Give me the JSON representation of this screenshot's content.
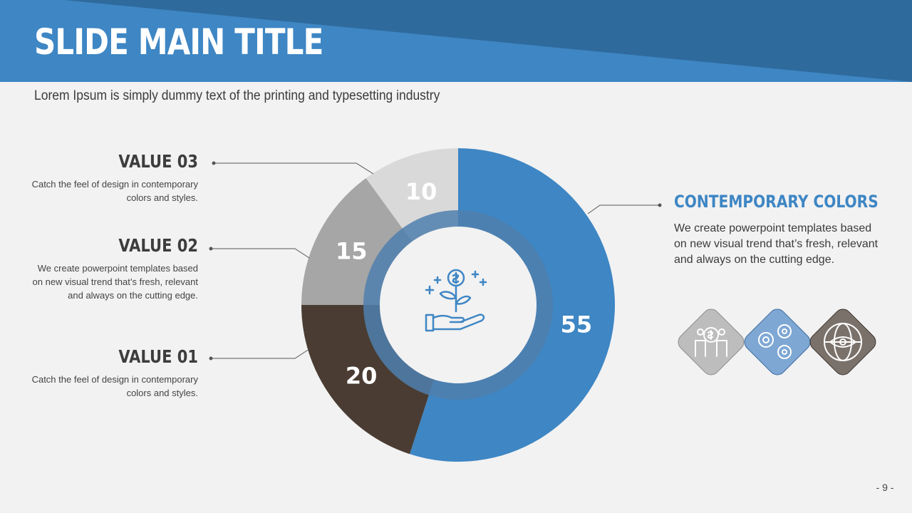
{
  "slide": {
    "title": "SLIDE MAIN TITLE",
    "subtitle": "Lorem Ipsum is simply dummy text of the printing and typesetting industry",
    "page_number": "- 9 -"
  },
  "values": [
    {
      "title": "VALUE 03",
      "description": "Catch the feel of design in contemporary colors and styles."
    },
    {
      "title": "VALUE 02",
      "description": "We create powerpoint templates based on new visual trend that’s fresh, relevant and always on the cutting edge."
    },
    {
      "title": "VALUE 01",
      "description": "Catch the feel of design in contemporary colors and styles."
    }
  ],
  "right_panel": {
    "title": "CONTEMPORARY COLORS",
    "description": "We create powerpoint templates based on new visual trend that’s fresh, relevant and always on the cutting edge.",
    "icons": [
      {
        "name": "investor-people-icon",
        "color": "#bdbdbd"
      },
      {
        "name": "gears-team-icon",
        "color": "#7ea7d4"
      },
      {
        "name": "globe-eye-icon",
        "color": "#7a716b"
      }
    ]
  },
  "colors": {
    "header_dark": "#2f6a9c",
    "header_light": "#3e86c4",
    "accent": "#3e86c4",
    "dark_brown": "#4a3c32",
    "mid_gray": "#a6a6a6",
    "light_gray": "#d9d9d9"
  },
  "center_icon": "plant-in-hand-money-icon",
  "chart_data": {
    "type": "pie",
    "categories": [
      "55",
      "20",
      "15",
      "10"
    ],
    "values": [
      55,
      20,
      15,
      10
    ],
    "colors": [
      "#3e86c4",
      "#4a3c32",
      "#a6a6a6",
      "#d9d9d9"
    ],
    "labels": [
      "55",
      "20",
      "15",
      "10"
    ],
    "donut": true
  }
}
